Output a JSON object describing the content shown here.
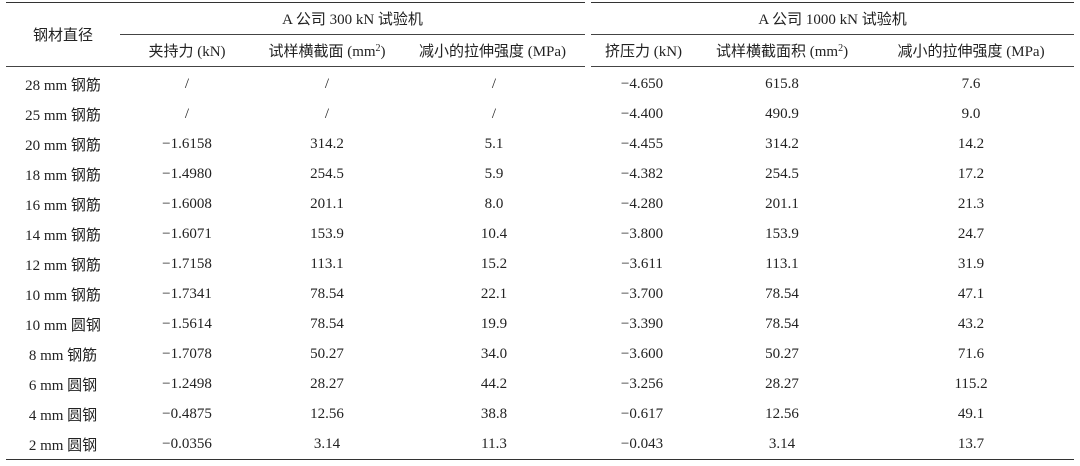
{
  "table": {
    "row_header": "钢材直径",
    "groups": [
      {
        "title": "A 公司 300 kN 试验机",
        "columns": [
          "夹持力 (kN)",
          "试样横截面 (mm²)",
          "减小的拉伸强度 (MPa)"
        ]
      },
      {
        "title": "A 公司 1000 kN 试验机",
        "columns": [
          "挤压力 (kN)",
          "试样横截面积 (mm²)",
          "减小的拉伸强度 (MPa)"
        ]
      }
    ],
    "rows": [
      {
        "label": "28 mm 钢筋",
        "cells": [
          "/",
          "/",
          "/",
          "−4.650",
          "615.8",
          "7.6"
        ]
      },
      {
        "label": "25 mm 钢筋",
        "cells": [
          "/",
          "/",
          "/",
          "−4.400",
          "490.9",
          "9.0"
        ]
      },
      {
        "label": "20 mm 钢筋",
        "cells": [
          "−1.6158",
          "314.2",
          "5.1",
          "−4.455",
          "314.2",
          "14.2"
        ]
      },
      {
        "label": "18 mm 钢筋",
        "cells": [
          "−1.4980",
          "254.5",
          "5.9",
          "−4.382",
          "254.5",
          "17.2"
        ]
      },
      {
        "label": "16 mm 钢筋",
        "cells": [
          "−1.6008",
          "201.1",
          "8.0",
          "−4.280",
          "201.1",
          "21.3"
        ]
      },
      {
        "label": "14 mm 钢筋",
        "cells": [
          "−1.6071",
          "153.9",
          "10.4",
          "−3.800",
          "153.9",
          "24.7"
        ]
      },
      {
        "label": "12 mm 钢筋",
        "cells": [
          "−1.7158",
          "113.1",
          "15.2",
          "−3.611",
          "113.1",
          "31.9"
        ]
      },
      {
        "label": "10 mm 钢筋",
        "cells": [
          "−1.7341",
          "78.54",
          "22.1",
          "−3.700",
          "78.54",
          "47.1"
        ]
      },
      {
        "label": "10 mm 圆钢",
        "cells": [
          "−1.5614",
          "78.54",
          "19.9",
          "−3.390",
          "78.54",
          "43.2"
        ]
      },
      {
        "label": "8 mm 钢筋",
        "cells": [
          "−1.7078",
          "50.27",
          "34.0",
          "−3.600",
          "50.27",
          "71.6"
        ]
      },
      {
        "label": "6 mm 圆钢",
        "cells": [
          "−1.2498",
          "28.27",
          "44.2",
          "−3.256",
          "28.27",
          "115.2"
        ]
      },
      {
        "label": "4 mm 圆钢",
        "cells": [
          "−0.4875",
          "12.56",
          "38.8",
          "−0.617",
          "12.56",
          "49.1"
        ]
      },
      {
        "label": "2 mm 圆钢",
        "cells": [
          "−0.0356",
          "3.14",
          "11.3",
          "−0.043",
          "3.14",
          "13.7"
        ]
      }
    ]
  }
}
